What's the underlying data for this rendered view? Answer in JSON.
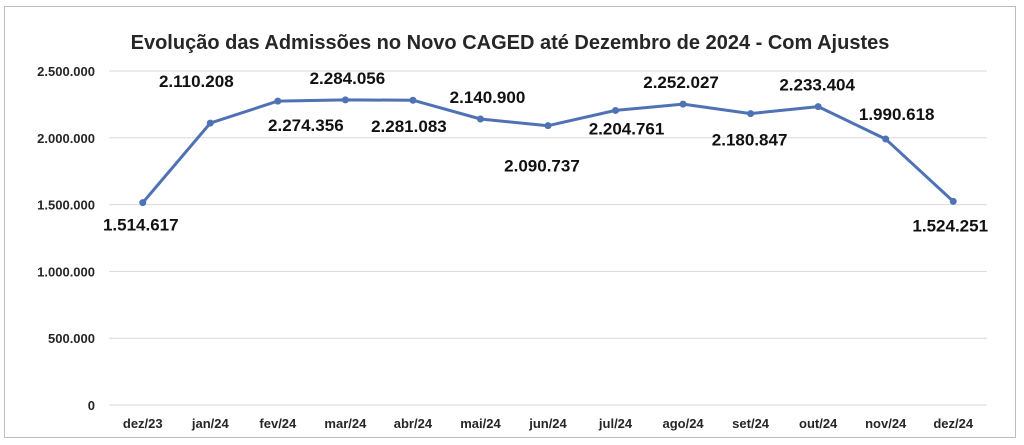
{
  "chart_data": {
    "type": "line",
    "title": "Evolução das Admissões no Novo CAGED até Dezembro de 2024 - Com Ajustes",
    "xlabel": "",
    "ylabel": "",
    "categories": [
      "dez/23",
      "jan/24",
      "fev/24",
      "mar/24",
      "abr/24",
      "mai/24",
      "jun/24",
      "jul/24",
      "ago/24",
      "set/24",
      "out/24",
      "nov/24",
      "dez/24"
    ],
    "series": [
      {
        "values": [
          1514617,
          2110208,
          2274356,
          2284056,
          2281083,
          2140900,
          2090737,
          2204761,
          2252027,
          2180847,
          2233404,
          1990618,
          1524251
        ],
        "data_labels": [
          "1.514.617",
          "2.110.208",
          "2.274.356",
          "2.284.056",
          "2.281.083",
          "2.140.900",
          "2.090.737",
          "2.204.761",
          "2.252.027",
          "2.180.847",
          "2.233.404",
          "1.990.618",
          "1.524.251"
        ],
        "color": "#4f72b5"
      }
    ],
    "ylim": [
      0,
      2500000
    ],
    "yticks": [
      0,
      500000,
      1000000,
      1500000,
      2000000,
      2500000
    ],
    "ytick_labels": [
      "0",
      "500.000",
      "1.000.000",
      "1.500.000",
      "2.000.000",
      "2.500.000"
    ],
    "grid": true,
    "legend": "none"
  }
}
